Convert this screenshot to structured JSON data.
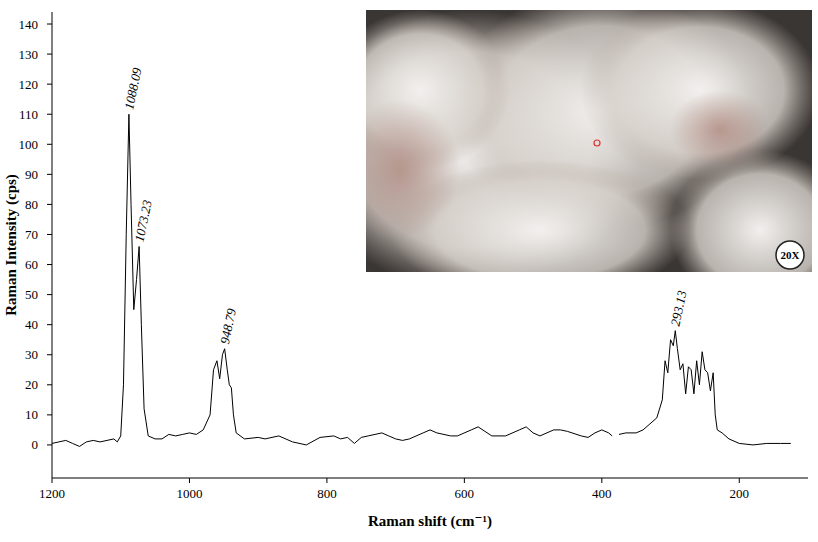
{
  "chart_data": {
    "type": "line",
    "x_label": "Raman shift (cm⁻¹)",
    "y_label": "Raman Intensity (cps)",
    "color": "#000000",
    "xlim": [
      1200,
      100
    ],
    "ylim": [
      -11,
      144
    ],
    "xticks": [
      1200,
      1000,
      800,
      600,
      400,
      200
    ],
    "yticks": [
      0,
      10,
      20,
      30,
      40,
      50,
      60,
      70,
      80,
      90,
      100,
      110,
      120,
      130,
      140
    ],
    "x": [
      1200,
      1190,
      1180,
      1170,
      1160,
      1150,
      1140,
      1130,
      1120,
      1110,
      1105,
      1100,
      1096,
      1092,
      1088.09,
      1085,
      1081,
      1077,
      1073.23,
      1070,
      1066,
      1060,
      1050,
      1040,
      1030,
      1020,
      1010,
      1000,
      990,
      980,
      970,
      965,
      960,
      956,
      952,
      948.79,
      945,
      942,
      939,
      936,
      932,
      920,
      900,
      890,
      870,
      850,
      830,
      810,
      790,
      780,
      770,
      760,
      750,
      740,
      730,
      720,
      710,
      700,
      690,
      680,
      660,
      650,
      640,
      620,
      610,
      590,
      580,
      570,
      560,
      540,
      520,
      510,
      500,
      490,
      470,
      460,
      450,
      430,
      420,
      410,
      400,
      390,
      385,
      380,
      375,
      365,
      350,
      340,
      330,
      320,
      312,
      308,
      304,
      300,
      296,
      293.13,
      290,
      286,
      282,
      278,
      274,
      270,
      266,
      262,
      258,
      254,
      250,
      246,
      242,
      238,
      235,
      232,
      225,
      215,
      200,
      180,
      160,
      140,
      125
    ],
    "values": [
      0.5,
      1,
      1.5,
      0.5,
      -0.5,
      1,
      1.5,
      1,
      1.5,
      2,
      1,
      3,
      20,
      70,
      110,
      80,
      45,
      55,
      66,
      40,
      12,
      3,
      2,
      2,
      3.5,
      3,
      3.5,
      4,
      3.5,
      5,
      10,
      25,
      28,
      22,
      30,
      32,
      25,
      20,
      19,
      10,
      4,
      2,
      2.5,
      2,
      3,
      1,
      0,
      2.5,
      3,
      2,
      2.5,
      0.5,
      2.5,
      3,
      3.5,
      4,
      3,
      2,
      1.5,
      2,
      4,
      5,
      4,
      3,
      3,
      5,
      6,
      4.5,
      3,
      3,
      5,
      6,
      4,
      3,
      5,
      5,
      4.5,
      3,
      2.5,
      4,
      5,
      4,
      3,
      null,
      3.5,
      4,
      4,
      5,
      7,
      9,
      15,
      28,
      24,
      35,
      33,
      38,
      32,
      25,
      27,
      17,
      26,
      25,
      17,
      28,
      20,
      31,
      25,
      24,
      18,
      24,
      10,
      5,
      4,
      2,
      0.5,
      0,
      0.5,
      0.5,
      0.5
    ],
    "annotations": [
      {
        "text": "1088.09",
        "x": 1088.09,
        "y": 110
      },
      {
        "text": "1073.23",
        "x": 1073.23,
        "y": 66
      },
      {
        "text": "948.79",
        "x": 948.79,
        "y": 32
      },
      {
        "text": "293.13",
        "x": 293.13,
        "y": 38
      }
    ],
    "inset": {
      "label": "20X"
    }
  }
}
